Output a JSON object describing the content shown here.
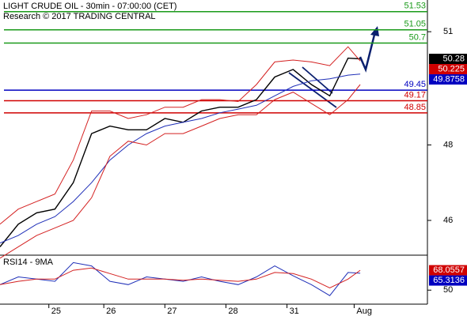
{
  "chart_data": [
    {
      "type": "line",
      "title": "LIGHT CRUDE OIL - 30min - 07:00:00 (CET)",
      "subtitle": "Research © 2017 TRADING CENTRAL",
      "x": [
        0,
        3,
        6,
        9,
        12,
        15,
        18,
        21,
        24,
        27,
        30,
        33,
        36,
        39,
        42,
        45,
        48,
        51,
        54,
        57,
        59
      ],
      "xlim": [
        0,
        70
      ],
      "ylim": [
        45.1,
        51.84
      ],
      "yticks": [
        46,
        48,
        51
      ],
      "series": [
        {
          "color": "#000000",
          "values": [
            45.3,
            45.9,
            46.2,
            46.3,
            47.0,
            48.3,
            48.5,
            48.4,
            48.4,
            48.7,
            48.6,
            48.9,
            49.0,
            49.0,
            49.2,
            49.8,
            50.0,
            49.6,
            49.3,
            50.3,
            50.28
          ]
        },
        {
          "color": "#1f2fb8",
          "values": [
            45.4,
            45.6,
            45.9,
            46.1,
            46.5,
            47.0,
            47.6,
            48.0,
            48.3,
            48.5,
            48.6,
            48.7,
            48.85,
            48.95,
            49.05,
            49.3,
            49.55,
            49.7,
            49.75,
            49.85,
            49.8758
          ]
        },
        {
          "color": "#d42020",
          "values": [
            45.9,
            46.3,
            46.5,
            46.7,
            47.6,
            48.9,
            48.9,
            48.7,
            48.8,
            49.0,
            49.0,
            49.2,
            49.2,
            49.15,
            49.6,
            50.2,
            50.25,
            50.2,
            50.1,
            50.6,
            50.225
          ]
        },
        {
          "color": "#d42020",
          "values": [
            45.0,
            45.3,
            45.6,
            45.8,
            46.0,
            46.6,
            47.7,
            48.1,
            48.0,
            48.3,
            48.3,
            48.5,
            48.7,
            48.8,
            48.8,
            49.2,
            49.4,
            49.1,
            48.8,
            49.2,
            49.6
          ]
        }
      ],
      "levels": [
        {
          "value": 51.53,
          "color": "#1a9a1a"
        },
        {
          "value": 51.05,
          "color": "#1a9a1a"
        },
        {
          "value": 50.7,
          "color": "#1a9a1a"
        },
        {
          "value": 49.45,
          "color": "#0000c0"
        },
        {
          "value": 49.17,
          "color": "#d00000"
        },
        {
          "value": 48.85,
          "color": "#d00000"
        }
      ],
      "price_tags": [
        {
          "value": 50.28,
          "color": "#000000"
        },
        {
          "value": 50.225,
          "color": "#d00000"
        },
        {
          "value": 49.8758,
          "color": "#0000c0"
        }
      ]
    },
    {
      "type": "line",
      "title": "RSI14 - 9MA",
      "x": [
        0,
        3,
        6,
        9,
        12,
        15,
        18,
        21,
        24,
        27,
        30,
        33,
        36,
        39,
        42,
        45,
        48,
        51,
        54,
        57,
        59
      ],
      "xlim": [
        0,
        70
      ],
      "xticks": [
        {
          "value": 8,
          "label": "25"
        },
        {
          "value": 17,
          "label": "26"
        },
        {
          "value": 27,
          "label": "27"
        },
        {
          "value": 37,
          "label": "28"
        },
        {
          "value": 47,
          "label": "31"
        },
        {
          "value": 58,
          "label": "Aug"
        }
      ],
      "ylim": [
        38,
        81
      ],
      "yticks": [
        50
      ],
      "series": [
        {
          "color": "#1f2fb8",
          "values": [
            55,
            62,
            60,
            58,
            75,
            72,
            58,
            55,
            62,
            60,
            58,
            62,
            58,
            55,
            62,
            72,
            63,
            55,
            45,
            66,
            65.3136
          ]
        },
        {
          "color": "#d42020",
          "values": [
            55,
            58,
            60,
            60,
            68,
            70,
            65,
            60,
            60,
            60,
            59,
            60,
            59,
            58,
            60,
            66,
            65,
            60,
            52,
            60,
            68.0557
          ]
        }
      ],
      "price_tags": [
        {
          "value": 68.0557,
          "color": "#d00000"
        },
        {
          "value": 65.3136,
          "color": "#0000c0"
        }
      ]
    }
  ]
}
